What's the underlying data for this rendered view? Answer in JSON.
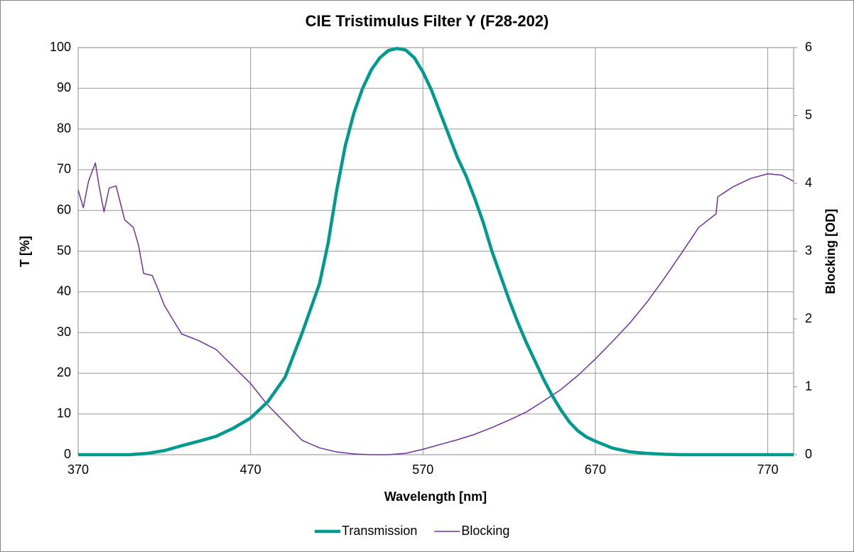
{
  "chart_data": {
    "type": "line",
    "title": "CIE Tristimulus Filter Y (F28-202)",
    "x_label": "Wavelength [nm]",
    "y_label": "T [%]",
    "y2_label": "Blocking [OD]",
    "xlim": [
      370,
      785
    ],
    "xticks": [
      370,
      470,
      570,
      670,
      770
    ],
    "ylim": [
      0,
      100
    ],
    "yticks": [
      0,
      10,
      20,
      30,
      40,
      50,
      60,
      70,
      80,
      90,
      100
    ],
    "y2lim": [
      0,
      6
    ],
    "y2ticks": [
      0,
      1,
      2,
      3,
      4,
      5,
      6
    ],
    "grid": true,
    "legend": "bottom",
    "series": [
      {
        "name": "Transmission",
        "color": "#009a8e",
        "x": [
          370,
          400,
          410,
          420,
          430,
          440,
          450,
          460,
          470,
          480,
          490,
          500,
          510,
          515,
          520,
          525,
          530,
          535,
          540,
          545,
          550,
          555,
          560,
          565,
          570,
          575,
          580,
          585,
          590,
          595,
          600,
          605,
          610,
          615,
          620,
          625,
          630,
          635,
          640,
          645,
          650,
          655,
          660,
          665,
          670,
          680,
          690,
          700,
          710,
          720,
          785
        ],
        "values": [
          0,
          0,
          0.3,
          1,
          2.2,
          3.3,
          4.5,
          6.5,
          9,
          13,
          19,
          30,
          42,
          52,
          65,
          76,
          84,
          90,
          94.5,
          97.5,
          99.3,
          99.8,
          99.4,
          97.5,
          94,
          89.5,
          84,
          78.5,
          73,
          68.5,
          63,
          57,
          50,
          44,
          38,
          32.5,
          27.5,
          23,
          18.5,
          14.5,
          11,
          8,
          5.8,
          4.3,
          3.3,
          1.6,
          0.7,
          0.3,
          0.1,
          0,
          0
        ]
      },
      {
        "name": "Blocking",
        "color": "#7030a0",
        "axis": "y2",
        "x": [
          370,
          373,
          376,
          380,
          382,
          385,
          388,
          392,
          395,
          397,
          402,
          405,
          408,
          413,
          416,
          420,
          430,
          440,
          450,
          460,
          470,
          480,
          490,
          500,
          510,
          520,
          530,
          540,
          550,
          560,
          570,
          580,
          590,
          600,
          610,
          620,
          630,
          640,
          650,
          660,
          670,
          680,
          690,
          700,
          710,
          720,
          730,
          740,
          741,
          750,
          760,
          770,
          778,
          785
        ],
        "values": [
          3.9,
          3.64,
          4.03,
          4.3,
          3.98,
          3.58,
          3.93,
          3.96,
          3.66,
          3.46,
          3.35,
          3.09,
          2.67,
          2.64,
          2.46,
          2.2,
          1.78,
          1.68,
          1.55,
          1.3,
          1.05,
          0.73,
          0.47,
          0.21,
          0.1,
          0.04,
          0.01,
          0,
          0,
          0.02,
          0.08,
          0.15,
          0.22,
          0.3,
          0.4,
          0.51,
          0.63,
          0.79,
          0.96,
          1.17,
          1.41,
          1.67,
          1.94,
          2.25,
          2.6,
          2.97,
          3.35,
          3.55,
          3.8,
          3.95,
          4.07,
          4.14,
          4.12,
          4.03
        ]
      }
    ]
  }
}
